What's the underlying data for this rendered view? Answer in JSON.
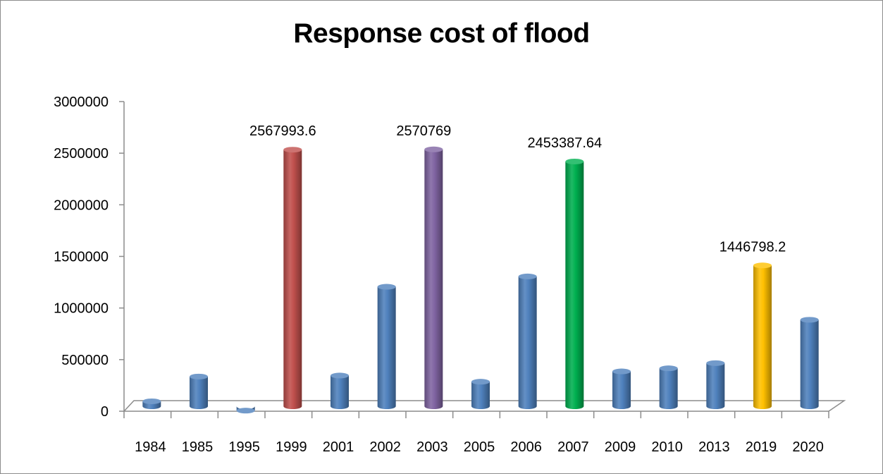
{
  "chart_data": {
    "type": "bar",
    "title": "Response cost of flood",
    "xlabel": "",
    "ylabel": "",
    "ylim": [
      0,
      3000000
    ],
    "yticks": [
      0,
      500000,
      1000000,
      1500000,
      2000000,
      2500000,
      3000000
    ],
    "yticks_labels": [
      "0",
      "500000",
      "1000000",
      "1500000",
      "2000000",
      "2500000",
      "3000000"
    ],
    "categories": [
      "1984",
      "1985",
      "1995",
      "1999",
      "2001",
      "2002",
      "2003",
      "2005",
      "2006",
      "2007",
      "2009",
      "2010",
      "2013",
      "2019",
      "2020"
    ],
    "values": [
      130000,
      370000,
      40000,
      2567993.6,
      380000,
      1240000,
      2570769,
      320000,
      1340000,
      2453387.64,
      420000,
      450000,
      500000,
      1446798.2,
      920000
    ],
    "colors": [
      "#4f81bd",
      "#4f81bd",
      "#4f81bd",
      "#c0504d",
      "#4f81bd",
      "#4f81bd",
      "#8064a2",
      "#4f81bd",
      "#4f81bd",
      "#00b050",
      "#4f81bd",
      "#4f81bd",
      "#4f81bd",
      "#ffc000",
      "#4f81bd"
    ],
    "data_labels": [
      "",
      "",
      "",
      "2567993.6",
      "",
      "",
      "2570769",
      "",
      "",
      "2453387.64",
      "",
      "",
      "",
      "1446798.2",
      ""
    ],
    "grid": false,
    "legend": "none"
  }
}
